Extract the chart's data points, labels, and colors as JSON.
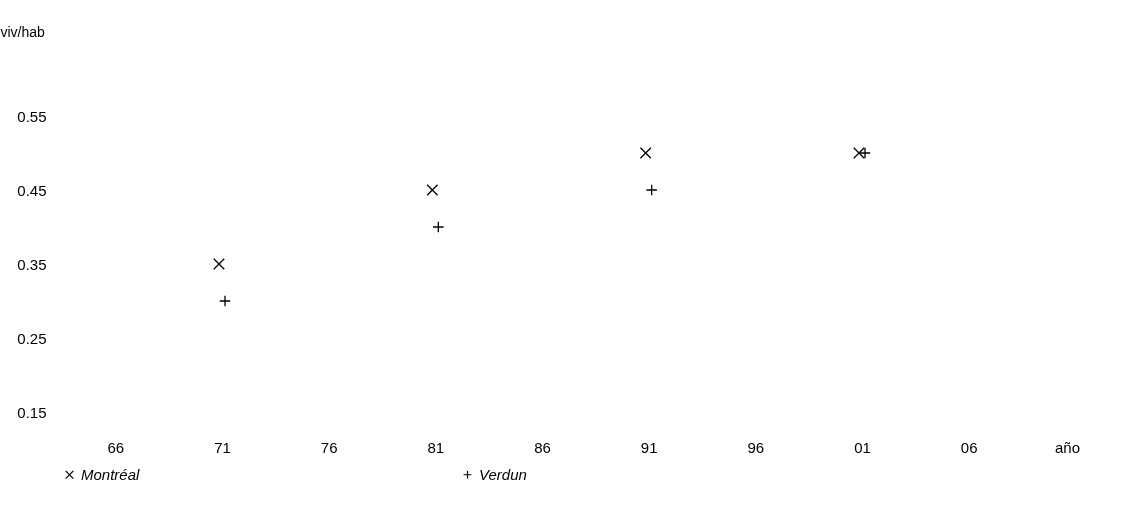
{
  "chart_data": {
    "type": "scatter",
    "ylabel": "viv/hab",
    "xlabel": "año",
    "categories": [
      "66",
      "71",
      "76",
      "81",
      "86",
      "91",
      "96",
      "01",
      "06"
    ],
    "series": [
      {
        "name": "Montréal",
        "color": "#000000",
        "marker": "x",
        "values": [
          null,
          0.35,
          null,
          0.45,
          null,
          0.5,
          null,
          0.5,
          null
        ]
      },
      {
        "name": "Verdun",
        "color": "#000000",
        "marker": "cross",
        "values": [
          null,
          0.3,
          null,
          0.4,
          null,
          0.45,
          null,
          0.5,
          null
        ]
      }
    ],
    "ylim": [
      0.15,
      0.55
    ],
    "yticks": [
      0.15,
      0.25,
      0.35,
      0.45,
      0.55
    ],
    "grid": false,
    "legend": "bottom"
  }
}
